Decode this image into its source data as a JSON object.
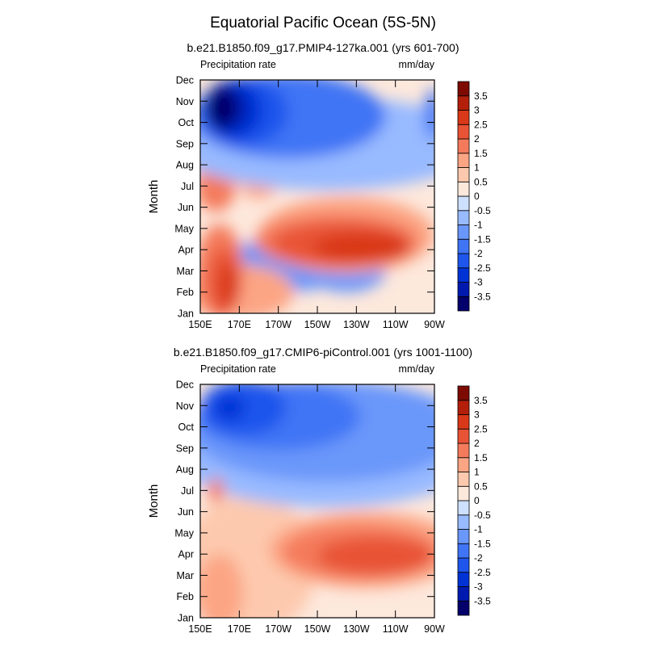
{
  "figure": {
    "title": "Equatorial Pacific Ocean (5S-5N)"
  },
  "chart_data": [
    {
      "type": "heatmap",
      "subtitle": "b.e21.B1850.f09_g17.PMIP4-127ka.001 (yrs 601-700)",
      "left_string": "Precipitation rate",
      "right_string": "mm/day",
      "xlabel": "",
      "ylabel": "Month",
      "x_ticks": [
        "150E",
        "170E",
        "170W",
        "150W",
        "130W",
        "110W",
        "90W"
      ],
      "y_ticks": [
        "Jan",
        "Feb",
        "Mar",
        "Apr",
        "May",
        "Jun",
        "Jul",
        "Aug",
        "Sep",
        "Oct",
        "Nov",
        "Dec"
      ],
      "colorbar_labels": [
        "3.5",
        "3",
        "2.5",
        "2",
        "1.5",
        "1",
        "0.5",
        "0",
        "-0.5",
        "-1",
        "-1.5",
        "-2",
        "-2.5",
        "-3",
        "-3.5"
      ],
      "regions": [
        {
          "level": -1.25,
          "cx": 190,
          "cy": 2.2,
          "rx": 40,
          "ry": 1.2
        },
        {
          "level": -1.25,
          "cx": 225,
          "cy": 2.0,
          "rx": 20,
          "ry": 1.0
        },
        {
          "level": 1.25,
          "cx": 170,
          "cy": 1.0,
          "rx": 28,
          "ry": 1.3
        },
        {
          "level": 1.25,
          "cx": 225,
          "cy": 3.7,
          "rx": 45,
          "ry": 1.8
        },
        {
          "level": 1.75,
          "cx": 158,
          "cy": 6.0,
          "rx": 10,
          "ry": 1.2
        },
        {
          "level": 1.25,
          "cx": 180,
          "cy": 6.2,
          "rx": 10,
          "ry": 0.8
        },
        {
          "level": -0.75,
          "cx": 215,
          "cy": 8.0,
          "rx": 80,
          "ry": 2.2
        },
        {
          "level": -1.75,
          "cx": 195,
          "cy": 9.3,
          "rx": 50,
          "ry": 2.0
        },
        {
          "level": -2.25,
          "cx": 173,
          "cy": 9.5,
          "rx": 22,
          "ry": 1.6
        },
        {
          "level": -2.75,
          "cx": 167,
          "cy": 9.6,
          "rx": 15,
          "ry": 1.4
        },
        {
          "level": -3.25,
          "cx": 163,
          "cy": 9.7,
          "rx": 11,
          "ry": 1.15
        },
        {
          "level": -3.75,
          "cx": 161,
          "cy": 9.7,
          "rx": 8,
          "ry": 0.95
        },
        {
          "level": -1.75,
          "cx": 269,
          "cy": 9.4,
          "rx": 4,
          "ry": 1.2
        },
        {
          "level": 1.75,
          "cx": 160,
          "cy": 2.0,
          "rx": 12,
          "ry": 2.2
        },
        {
          "level": 2.25,
          "cx": 162,
          "cy": 1.5,
          "rx": 8,
          "ry": 1.6
        },
        {
          "level": 2.75,
          "cx": 165,
          "cy": 1.3,
          "rx": 5,
          "ry": 1.0
        },
        {
          "level": 1.75,
          "cx": 220,
          "cy": 3.4,
          "rx": 42,
          "ry": 1.3
        },
        {
          "level": 2.25,
          "cx": 222,
          "cy": 3.3,
          "rx": 35,
          "ry": 1.0
        },
        {
          "level": 2.75,
          "cx": 233,
          "cy": 3.1,
          "rx": 25,
          "ry": 0.7
        }
      ]
    },
    {
      "type": "heatmap",
      "subtitle": "b.e21.B1850.f09_g17.CMIP6-piControl.001 (yrs 1001-1100)",
      "left_string": "Precipitation rate",
      "right_string": "mm/day",
      "xlabel": "",
      "ylabel": "Month",
      "x_ticks": [
        "150E",
        "170E",
        "170W",
        "150W",
        "130W",
        "110W",
        "90W"
      ],
      "y_ticks": [
        "Jan",
        "Feb",
        "Mar",
        "Apr",
        "May",
        "Jun",
        "Jul",
        "Aug",
        "Sep",
        "Oct",
        "Nov",
        "Dec"
      ],
      "colorbar_labels": [
        "3.5",
        "3",
        "2.5",
        "2",
        "1.5",
        "1",
        "0.5",
        "0",
        "-0.5",
        "-1",
        "-1.5",
        "-2",
        "-2.5",
        "-3",
        "-3.5"
      ],
      "regions": [
        {
          "level": 0.75,
          "cx": 175,
          "cy": 2.5,
          "rx": 35,
          "ry": 3.3
        },
        {
          "level": 1.25,
          "cx": 160,
          "cy": 1.2,
          "rx": 12,
          "ry": 1.8
        },
        {
          "level": 1.25,
          "cx": 235,
          "cy": 3.2,
          "rx": 50,
          "ry": 1.8
        },
        {
          "level": -0.75,
          "cx": 215,
          "cy": 8.2,
          "rx": 85,
          "ry": 3.0
        },
        {
          "level": -1.25,
          "cx": 215,
          "cy": 8.8,
          "rx": 70,
          "ry": 2.4
        },
        {
          "level": -1.75,
          "cx": 190,
          "cy": 9.5,
          "rx": 42,
          "ry": 1.6
        },
        {
          "level": -2.25,
          "cx": 172,
          "cy": 9.9,
          "rx": 22,
          "ry": 1.3
        },
        {
          "level": -2.75,
          "cx": 165,
          "cy": 9.9,
          "rx": 8,
          "ry": 0.6
        },
        {
          "level": 1.75,
          "cx": 232,
          "cy": 3.1,
          "rx": 40,
          "ry": 1.3
        },
        {
          "level": 2.25,
          "cx": 240,
          "cy": 2.9,
          "rx": 30,
          "ry": 0.9
        },
        {
          "level": 1.75,
          "cx": 158,
          "cy": 6.0,
          "rx": 4,
          "ry": 0.6
        }
      ]
    }
  ],
  "colors": {
    "levels": [
      -3.75,
      -3.25,
      -2.75,
      -2.25,
      -1.75,
      -1.25,
      -0.75,
      -0.25,
      0.25,
      0.75,
      1.25,
      1.75,
      2.25,
      2.75,
      3.25,
      3.75
    ],
    "palette": [
      "#04006c",
      "#001ab0",
      "#0033d6",
      "#1e55ec",
      "#3f74f5",
      "#6a97fa",
      "#98baff",
      "#cde0ff",
      "#fde8dc",
      "#fdc9ae",
      "#fca584",
      "#f47a5c",
      "#e85336",
      "#d93918",
      "#b31f0a",
      "#7d0b03"
    ]
  }
}
